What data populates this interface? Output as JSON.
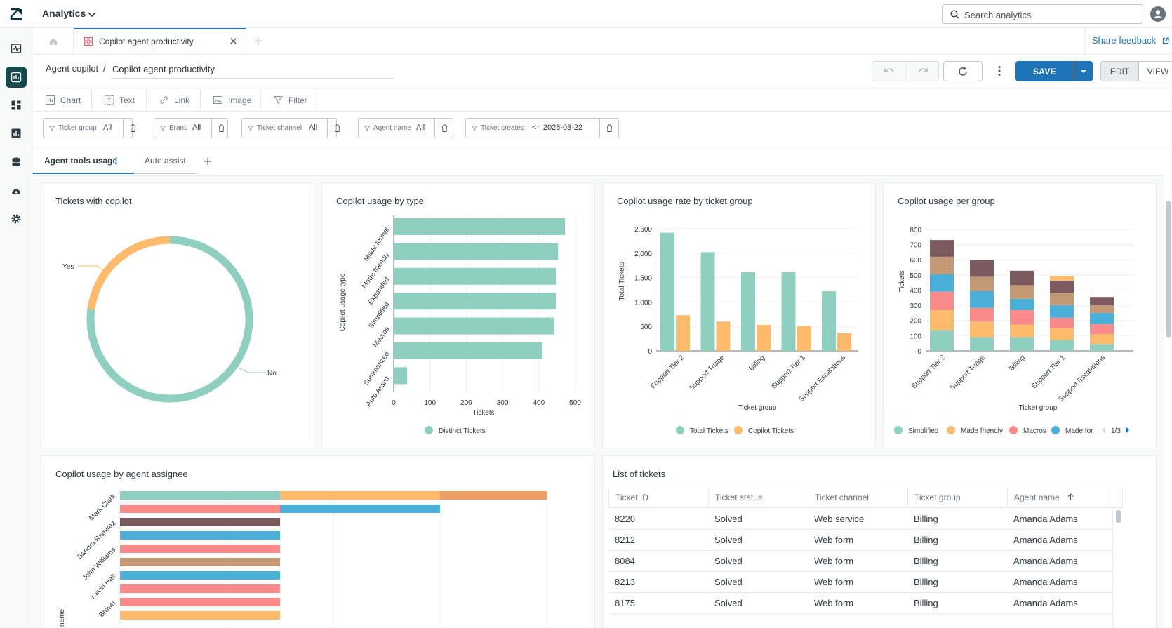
{
  "topbar": {
    "app_title": "Analytics",
    "search_placeholder": "Search analytics"
  },
  "tabs": {
    "doc_tab_label": "Copilot agent productivity",
    "feedback_label": "Share feedback"
  },
  "header": {
    "breadcrumb": "Agent copilot",
    "separator": "/",
    "title_value": "Copilot agent productivity",
    "save_label": "SAVE",
    "edit_label": "EDIT",
    "view_label": "VIEW"
  },
  "tools": [
    {
      "label": "Chart",
      "icon": "chart-icon"
    },
    {
      "label": "Text",
      "icon": "text-icon"
    },
    {
      "label": "Link",
      "icon": "link-icon"
    },
    {
      "label": "Image",
      "icon": "image-icon"
    },
    {
      "label": "Filter",
      "icon": "filter-icon"
    }
  ],
  "filters": [
    {
      "label": "Ticket group",
      "value": "All"
    },
    {
      "label": "Brand",
      "value": "All"
    },
    {
      "label": "Ticket channel",
      "value": "All"
    },
    {
      "label": "Agent name",
      "value": "All"
    },
    {
      "label": "Ticket created",
      "value": "<= 2026-03-22"
    }
  ],
  "sheet_tabs": [
    "Agent tools usage",
    "Auto assist"
  ],
  "colors": {
    "teal": "#8fcfbf",
    "orange": "#fdbb6b",
    "pink": "#fa8a8a",
    "blue": "#4ab0d9",
    "brown": "#c49a76",
    "dark_brown": "#7b5a5f",
    "dark_orange": "#ec9f64",
    "primary": "#1f73b7"
  },
  "charts": {
    "donut": {
      "title": "Tickets with copilot",
      "labels": {
        "yes": "Yes",
        "no": "No"
      }
    },
    "usage_by_type": {
      "title": "Copilot usage by type",
      "ylabel": "Copilot usage type",
      "xlabel": "Tickets",
      "legend": "Distinct Tickets",
      "ticks": [
        "0",
        "100",
        "200",
        "300",
        "400",
        "500"
      ]
    },
    "usage_rate": {
      "title": "Copilot usage rate by ticket group",
      "ylabel": "Total Tickets",
      "xlabel": "Ticket group",
      "ticks": [
        "0",
        "500",
        "1,000",
        "1,500",
        "2,000",
        "2,500"
      ],
      "legend": [
        "Total Tickets",
        "Copilot Tickets"
      ]
    },
    "per_group": {
      "title": "Copilot usage per group",
      "ylabel": "Tickets",
      "xlabel": "Ticket group",
      "ticks": [
        "0",
        "100",
        "200",
        "300",
        "400",
        "500",
        "600",
        "700",
        "800"
      ],
      "legend": [
        "Simplified",
        "Made friendly",
        "Macros",
        "Made for"
      ],
      "page": "1/3"
    },
    "by_assignee": {
      "title": "Copilot usage by agent assignee",
      "ylabel": "Agent name"
    }
  },
  "chart_data": [
    {
      "type": "pie",
      "title": "Tickets with copilot",
      "labels": [
        "Yes",
        "No"
      ],
      "values": [
        23,
        77
      ]
    },
    {
      "type": "bar",
      "title": "Copilot usage by type",
      "orientation": "horizontal",
      "categories": [
        "Made formal",
        "Made friendly",
        "Expanded",
        "Simplified",
        "Macros",
        "Summarized",
        "Auto Assist"
      ],
      "series": [
        {
          "name": "Distinct Tickets",
          "values": [
            472,
            453,
            447,
            447,
            443,
            410,
            37
          ]
        }
      ],
      "xlabel": "Tickets",
      "ylabel": "Copilot usage type",
      "xlim": [
        0,
        520
      ]
    },
    {
      "type": "bar",
      "title": "Copilot usage rate by ticket group",
      "categories": [
        "Support Tier 2",
        "Support Triage",
        "Billing",
        "Support Tier 1",
        "Support Escalations"
      ],
      "series": [
        {
          "name": "Total Tickets",
          "values": [
            2420,
            2020,
            1610,
            1610,
            1220
          ]
        },
        {
          "name": "Copilot Tickets",
          "values": [
            730,
            600,
            530,
            510,
            360
          ]
        }
      ],
      "xlabel": "Ticket group",
      "ylabel": "Total Tickets",
      "ylim": [
        0,
        2500
      ]
    },
    {
      "type": "bar",
      "title": "Copilot usage per group",
      "stacked": true,
      "categories": [
        "Support Tier 2",
        "Support Triage",
        "Billing",
        "Support Tier 1",
        "Support Escalations"
      ],
      "series": [
        {
          "name": "Simplified",
          "values": [
            135,
            90,
            90,
            72,
            45
          ]
        },
        {
          "name": "Made friendly",
          "values": [
            133,
            103,
            83,
            78,
            65
          ]
        },
        {
          "name": "Macros",
          "values": [
            122,
            90,
            95,
            68,
            65
          ]
        },
        {
          "name": "Made for",
          "values": [
            115,
            110,
            75,
            83,
            75
          ]
        },
        {
          "name": "",
          "values": [
            115,
            95,
            90,
            82,
            50
          ]
        },
        {
          "name": "",
          "values": [
            110,
            110,
            95,
            80,
            55
          ]
        },
        {
          "name": "",
          "values": [
            0,
            0,
            0,
            30,
            0
          ]
        }
      ],
      "xlabel": "Ticket group",
      "ylabel": "Tickets",
      "ylim": [
        0,
        800
      ]
    },
    {
      "type": "bar",
      "title": "Copilot usage by agent assignee",
      "orientation": "horizontal",
      "stacked": true,
      "categories": [
        "Mark Clark",
        "",
        "Sandra Ramirez",
        "",
        "John Williams",
        "",
        "Kevin Hall",
        "",
        "Brown"
      ],
      "ylabel": "Agent name"
    }
  ],
  "table": {
    "title": "List of tickets",
    "columns": [
      "Ticket ID",
      "Ticket status",
      "Ticket channel",
      "Ticket group",
      "Agent name"
    ],
    "rows": [
      [
        "8220",
        "Solved",
        "Web service",
        "Billing",
        "Amanda Adams"
      ],
      [
        "8212",
        "Solved",
        "Web form",
        "Billing",
        "Amanda Adams"
      ],
      [
        "8084",
        "Solved",
        "Web form",
        "Billing",
        "Amanda Adams"
      ],
      [
        "8213",
        "Solved",
        "Web form",
        "Billing",
        "Amanda Adams"
      ],
      [
        "8175",
        "Solved",
        "Web form",
        "Billing",
        "Amanda Adams"
      ]
    ]
  }
}
